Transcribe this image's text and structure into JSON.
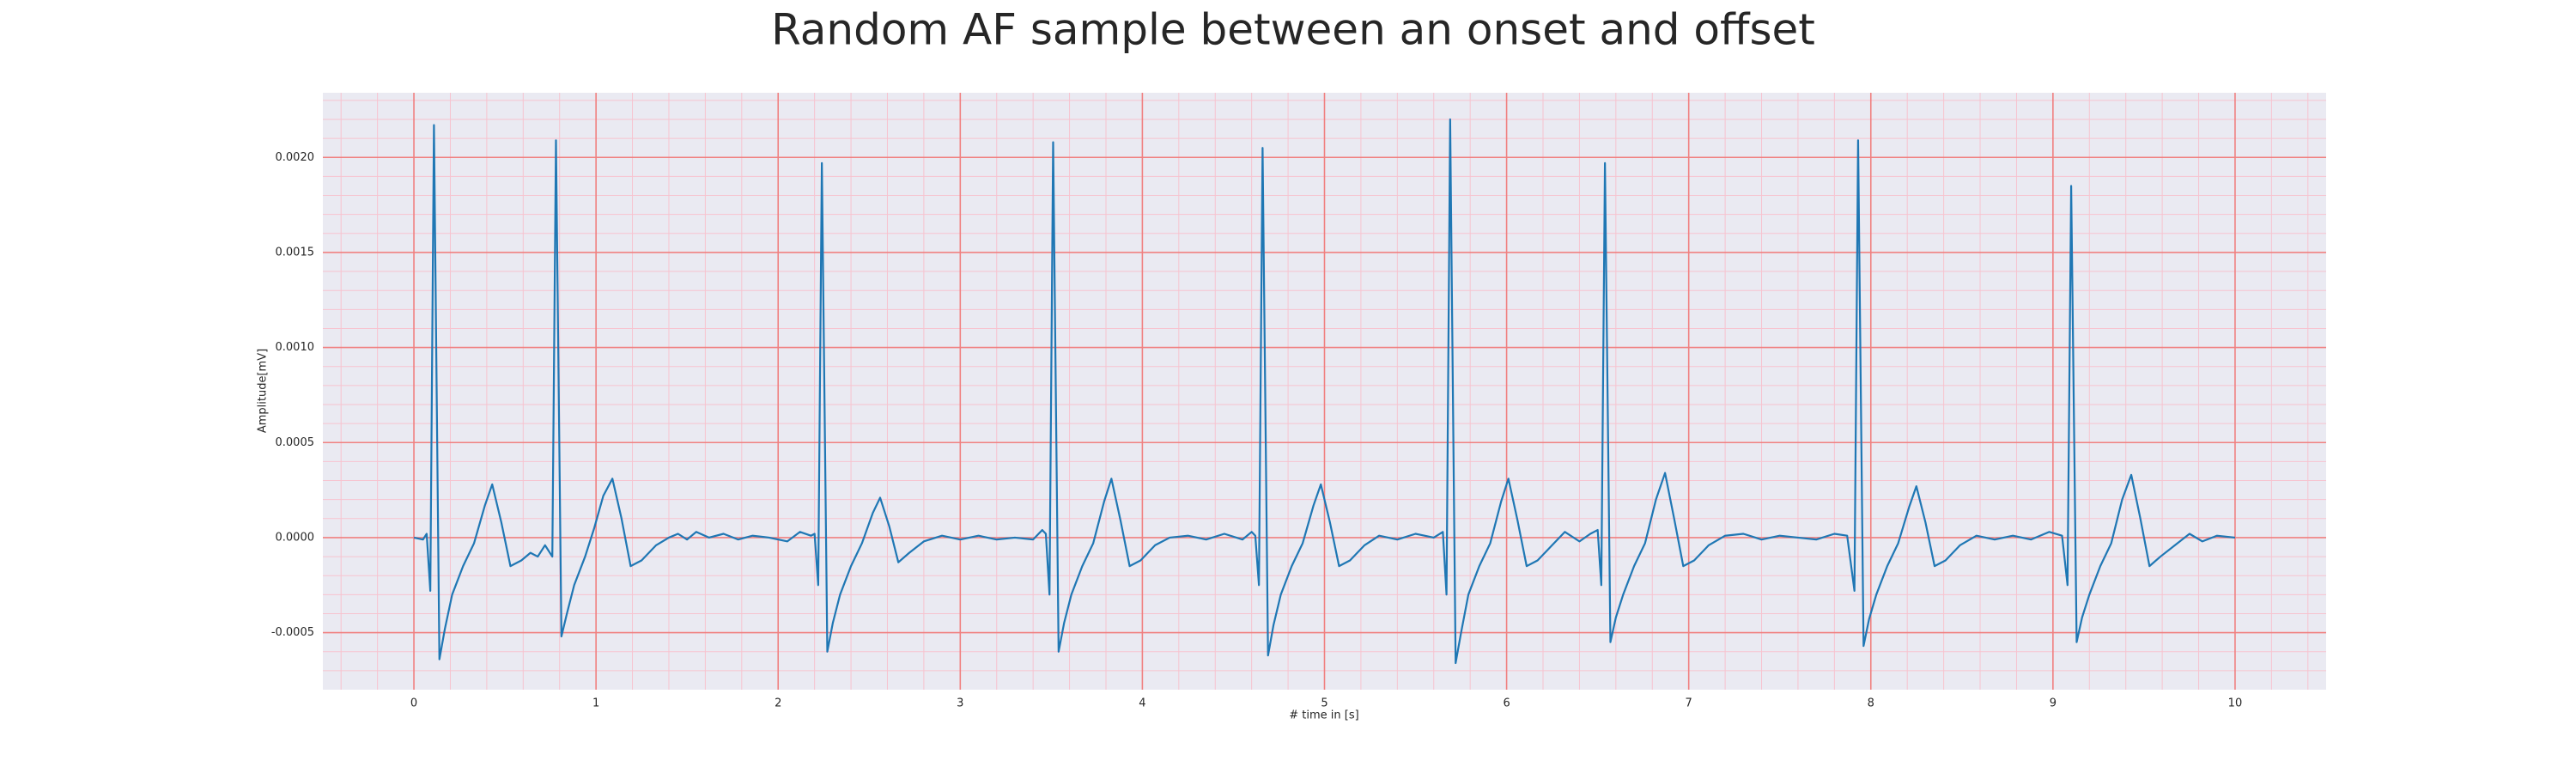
{
  "chart_data": {
    "type": "line",
    "title": "Random AF sample between an onset and offset",
    "xlabel": "# time in [s]",
    "ylabel": "Amplitude[mV]",
    "color": "#1f77b4",
    "background": "#eaeaf2",
    "grid": true,
    "grid_color": "#f08080",
    "minor_grid": true,
    "minor_grid_color": "#f7c3cf",
    "xlim": [
      -0.5,
      10.5
    ],
    "ylim": [
      -0.0008,
      0.00234
    ],
    "xticks": [
      0,
      1,
      2,
      3,
      4,
      5,
      6,
      7,
      8,
      9,
      10
    ],
    "yticks": [
      {
        "value": -0.0005,
        "label": "-0.0005"
      },
      {
        "value": 0,
        "label": "0.0000"
      },
      {
        "value": 0.0005,
        "label": "0.0005"
      },
      {
        "value": 0.001,
        "label": "0.0010"
      },
      {
        "value": 0.0015,
        "label": "0.0015"
      },
      {
        "value": 0.002,
        "label": "0.0020"
      }
    ],
    "xminorticks": [
      -0.4,
      -0.2,
      0.2,
      0.4,
      0.6,
      0.8,
      1.2,
      1.4,
      1.6,
      1.8,
      2.2,
      2.4,
      2.6,
      2.8,
      3.2,
      3.4,
      3.6,
      3.8,
      4.2,
      4.4,
      4.6,
      4.8,
      5.2,
      5.4,
      5.6,
      5.8,
      6.2,
      6.4,
      6.6,
      6.8,
      7.2,
      7.4,
      7.6,
      7.8,
      8.2,
      8.4,
      8.6,
      8.8,
      9.2,
      9.4,
      9.6,
      9.8,
      10.2,
      10.4
    ],
    "yminorticks": [
      -0.0007,
      -0.0006,
      -0.0004,
      -0.0003,
      -0.0002,
      -0.0001,
      0.0001,
      0.0002,
      0.0003,
      0.0004,
      0.0006,
      0.0007,
      0.0008,
      0.0009,
      0.0011,
      0.0012,
      0.0013,
      0.0014,
      0.0016,
      0.0017,
      0.0018,
      0.0019,
      0.0021,
      0.0022,
      0.0023
    ],
    "x": [
      0,
      0.05,
      0.07,
      0.09,
      0.11,
      0.14,
      0.17,
      0.21,
      0.27,
      0.33,
      0.39,
      0.43,
      0.48,
      0.53,
      0.59,
      0.64,
      0.68,
      0.72,
      0.76,
      0.78,
      0.81,
      0.84,
      0.88,
      0.94,
      0.99,
      1.04,
      1.09,
      1.14,
      1.19,
      1.25,
      1.33,
      1.4,
      1.45,
      1.5,
      1.55,
      1.62,
      1.7,
      1.78,
      1.86,
      1.95,
      2.05,
      2.12,
      2.18,
      2.2,
      2.22,
      2.24,
      2.27,
      2.3,
      2.34,
      2.4,
      2.46,
      2.52,
      2.56,
      2.61,
      2.66,
      2.72,
      2.8,
      2.9,
      3.0,
      3.1,
      3.2,
      3.3,
      3.4,
      3.45,
      3.47,
      3.49,
      3.51,
      3.54,
      3.57,
      3.61,
      3.67,
      3.73,
      3.79,
      3.83,
      3.88,
      3.93,
      3.99,
      4.07,
      4.15,
      4.25,
      4.35,
      4.45,
      4.55,
      4.6,
      4.62,
      4.64,
      4.66,
      4.69,
      4.72,
      4.76,
      4.82,
      4.88,
      4.94,
      4.98,
      5.03,
      5.08,
      5.14,
      5.22,
      5.3,
      5.4,
      5.5,
      5.6,
      5.65,
      5.67,
      5.69,
      5.72,
      5.75,
      5.79,
      5.85,
      5.91,
      5.97,
      6.01,
      6.06,
      6.11,
      6.17,
      6.25,
      6.32,
      6.4,
      6.46,
      6.5,
      6.52,
      6.54,
      6.57,
      6.6,
      6.64,
      6.7,
      6.76,
      6.82,
      6.87,
      6.92,
      6.97,
      7.03,
      7.11,
      7.2,
      7.3,
      7.4,
      7.5,
      7.6,
      7.7,
      7.8,
      7.87,
      7.91,
      7.93,
      7.96,
      7.99,
      8.03,
      8.09,
      8.15,
      8.21,
      8.25,
      8.3,
      8.35,
      8.41,
      8.49,
      8.58,
      8.68,
      8.78,
      8.88,
      8.98,
      9.05,
      9.08,
      9.1,
      9.13,
      9.16,
      9.2,
      9.26,
      9.32,
      9.38,
      9.43,
      9.48,
      9.53,
      9.59,
      9.67,
      9.75,
      9.82,
      9.9,
      10.0
    ],
    "values": [
      0,
      -1e-05,
      2e-05,
      -0.00028,
      0.00217,
      -0.00064,
      -0.00048,
      -0.0003,
      -0.00015,
      -3e-05,
      0.00017,
      0.00028,
      8e-05,
      -0.00015,
      -0.00012,
      -8e-05,
      -0.0001,
      -4e-05,
      -0.0001,
      0.00209,
      -0.00052,
      -0.0004,
      -0.00025,
      -0.0001,
      5e-05,
      0.00022,
      0.00031,
      0.0001,
      -0.00015,
      -0.00012,
      -4e-05,
      0,
      2e-05,
      -1e-05,
      3e-05,
      0,
      2e-05,
      -1e-05,
      1e-05,
      0,
      -2e-05,
      3e-05,
      1e-05,
      2e-05,
      -0.00025,
      0.00197,
      -0.0006,
      -0.00045,
      -0.0003,
      -0.00015,
      -3e-05,
      0.00013,
      0.00021,
      6e-05,
      -0.00013,
      -8e-05,
      -2e-05,
      1e-05,
      -1e-05,
      1e-05,
      -1e-05,
      0,
      -1e-05,
      4e-05,
      2e-05,
      -0.0003,
      0.00208,
      -0.0006,
      -0.00045,
      -0.0003,
      -0.00015,
      -3e-05,
      0.00019,
      0.00031,
      9e-05,
      -0.00015,
      -0.00012,
      -4e-05,
      0,
      1e-05,
      -1e-05,
      2e-05,
      -1e-05,
      3e-05,
      1e-05,
      -0.00025,
      0.00205,
      -0.00062,
      -0.00046,
      -0.0003,
      -0.00015,
      -3e-05,
      0.00017,
      0.00028,
      8e-05,
      -0.00015,
      -0.00012,
      -4e-05,
      1e-05,
      -1e-05,
      2e-05,
      0,
      3e-05,
      -0.0003,
      0.0022,
      -0.00066,
      -0.0005,
      -0.0003,
      -0.00015,
      -3e-05,
      0.00019,
      0.00031,
      9e-05,
      -0.00015,
      -0.00012,
      -4e-05,
      3e-05,
      -2e-05,
      2e-05,
      4e-05,
      -0.00025,
      0.00197,
      -0.00055,
      -0.00042,
      -0.0003,
      -0.00015,
      -3e-05,
      0.0002,
      0.00034,
      0.0001,
      -0.00015,
      -0.00012,
      -4e-05,
      1e-05,
      2e-05,
      -1e-05,
      1e-05,
      0,
      -1e-05,
      2e-05,
      1e-05,
      -0.00028,
      0.00209,
      -0.00057,
      -0.00043,
      -0.0003,
      -0.00015,
      -3e-05,
      0.00016,
      0.00027,
      8e-05,
      -0.00015,
      -0.00012,
      -4e-05,
      1e-05,
      -1e-05,
      1e-05,
      -1e-05,
      3e-05,
      1e-05,
      -0.00025,
      0.00185,
      -0.00055,
      -0.00042,
      -0.0003,
      -0.00015,
      -3e-05,
      0.0002,
      0.00033,
      0.0001,
      -0.00015,
      -0.0001,
      -4e-05,
      2e-05,
      -2e-05,
      1e-05,
      0
    ]
  }
}
